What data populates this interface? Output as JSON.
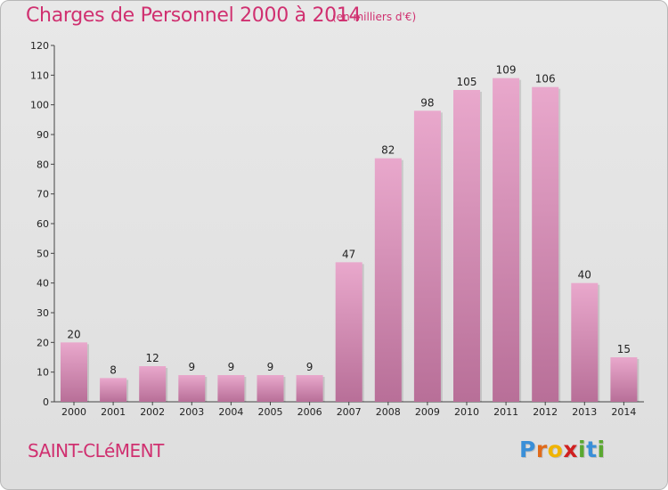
{
  "title": "Charges de Personnel 2000 à 2014",
  "subtitle": "(en milliers d'€)",
  "commune": "SAINT-CLéMENT",
  "logo": {
    "text": "Proxiti",
    "letters": [
      "P",
      "r",
      "o",
      "x",
      "i",
      "t",
      "i"
    ],
    "colors": [
      "#3a8fd8",
      "#e06a1a",
      "#f0b400",
      "#d02020",
      "#5aa830",
      "#3a8fd8",
      "#5aa830"
    ]
  },
  "colors": {
    "accent": "#d03070",
    "bar_top": "#e9a8cc",
    "bar_bottom": "#b86f98",
    "background": "#e4e4e4"
  },
  "chart_data": {
    "type": "bar",
    "title": "Charges de Personnel 2000 à 2014",
    "subtitle": "(en milliers d'€)",
    "categories": [
      "2000",
      "2001",
      "2002",
      "2003",
      "2004",
      "2005",
      "2006",
      "2007",
      "2008",
      "2009",
      "2010",
      "2011",
      "2012",
      "2013",
      "2014"
    ],
    "values": [
      20,
      8,
      12,
      9,
      9,
      9,
      9,
      47,
      82,
      98,
      105,
      109,
      106,
      40,
      15
    ],
    "ylim": [
      0,
      120
    ],
    "yticks": [
      0,
      10,
      20,
      30,
      40,
      50,
      60,
      70,
      80,
      90,
      100,
      110,
      120
    ],
    "grid": false,
    "data_labels": true
  }
}
